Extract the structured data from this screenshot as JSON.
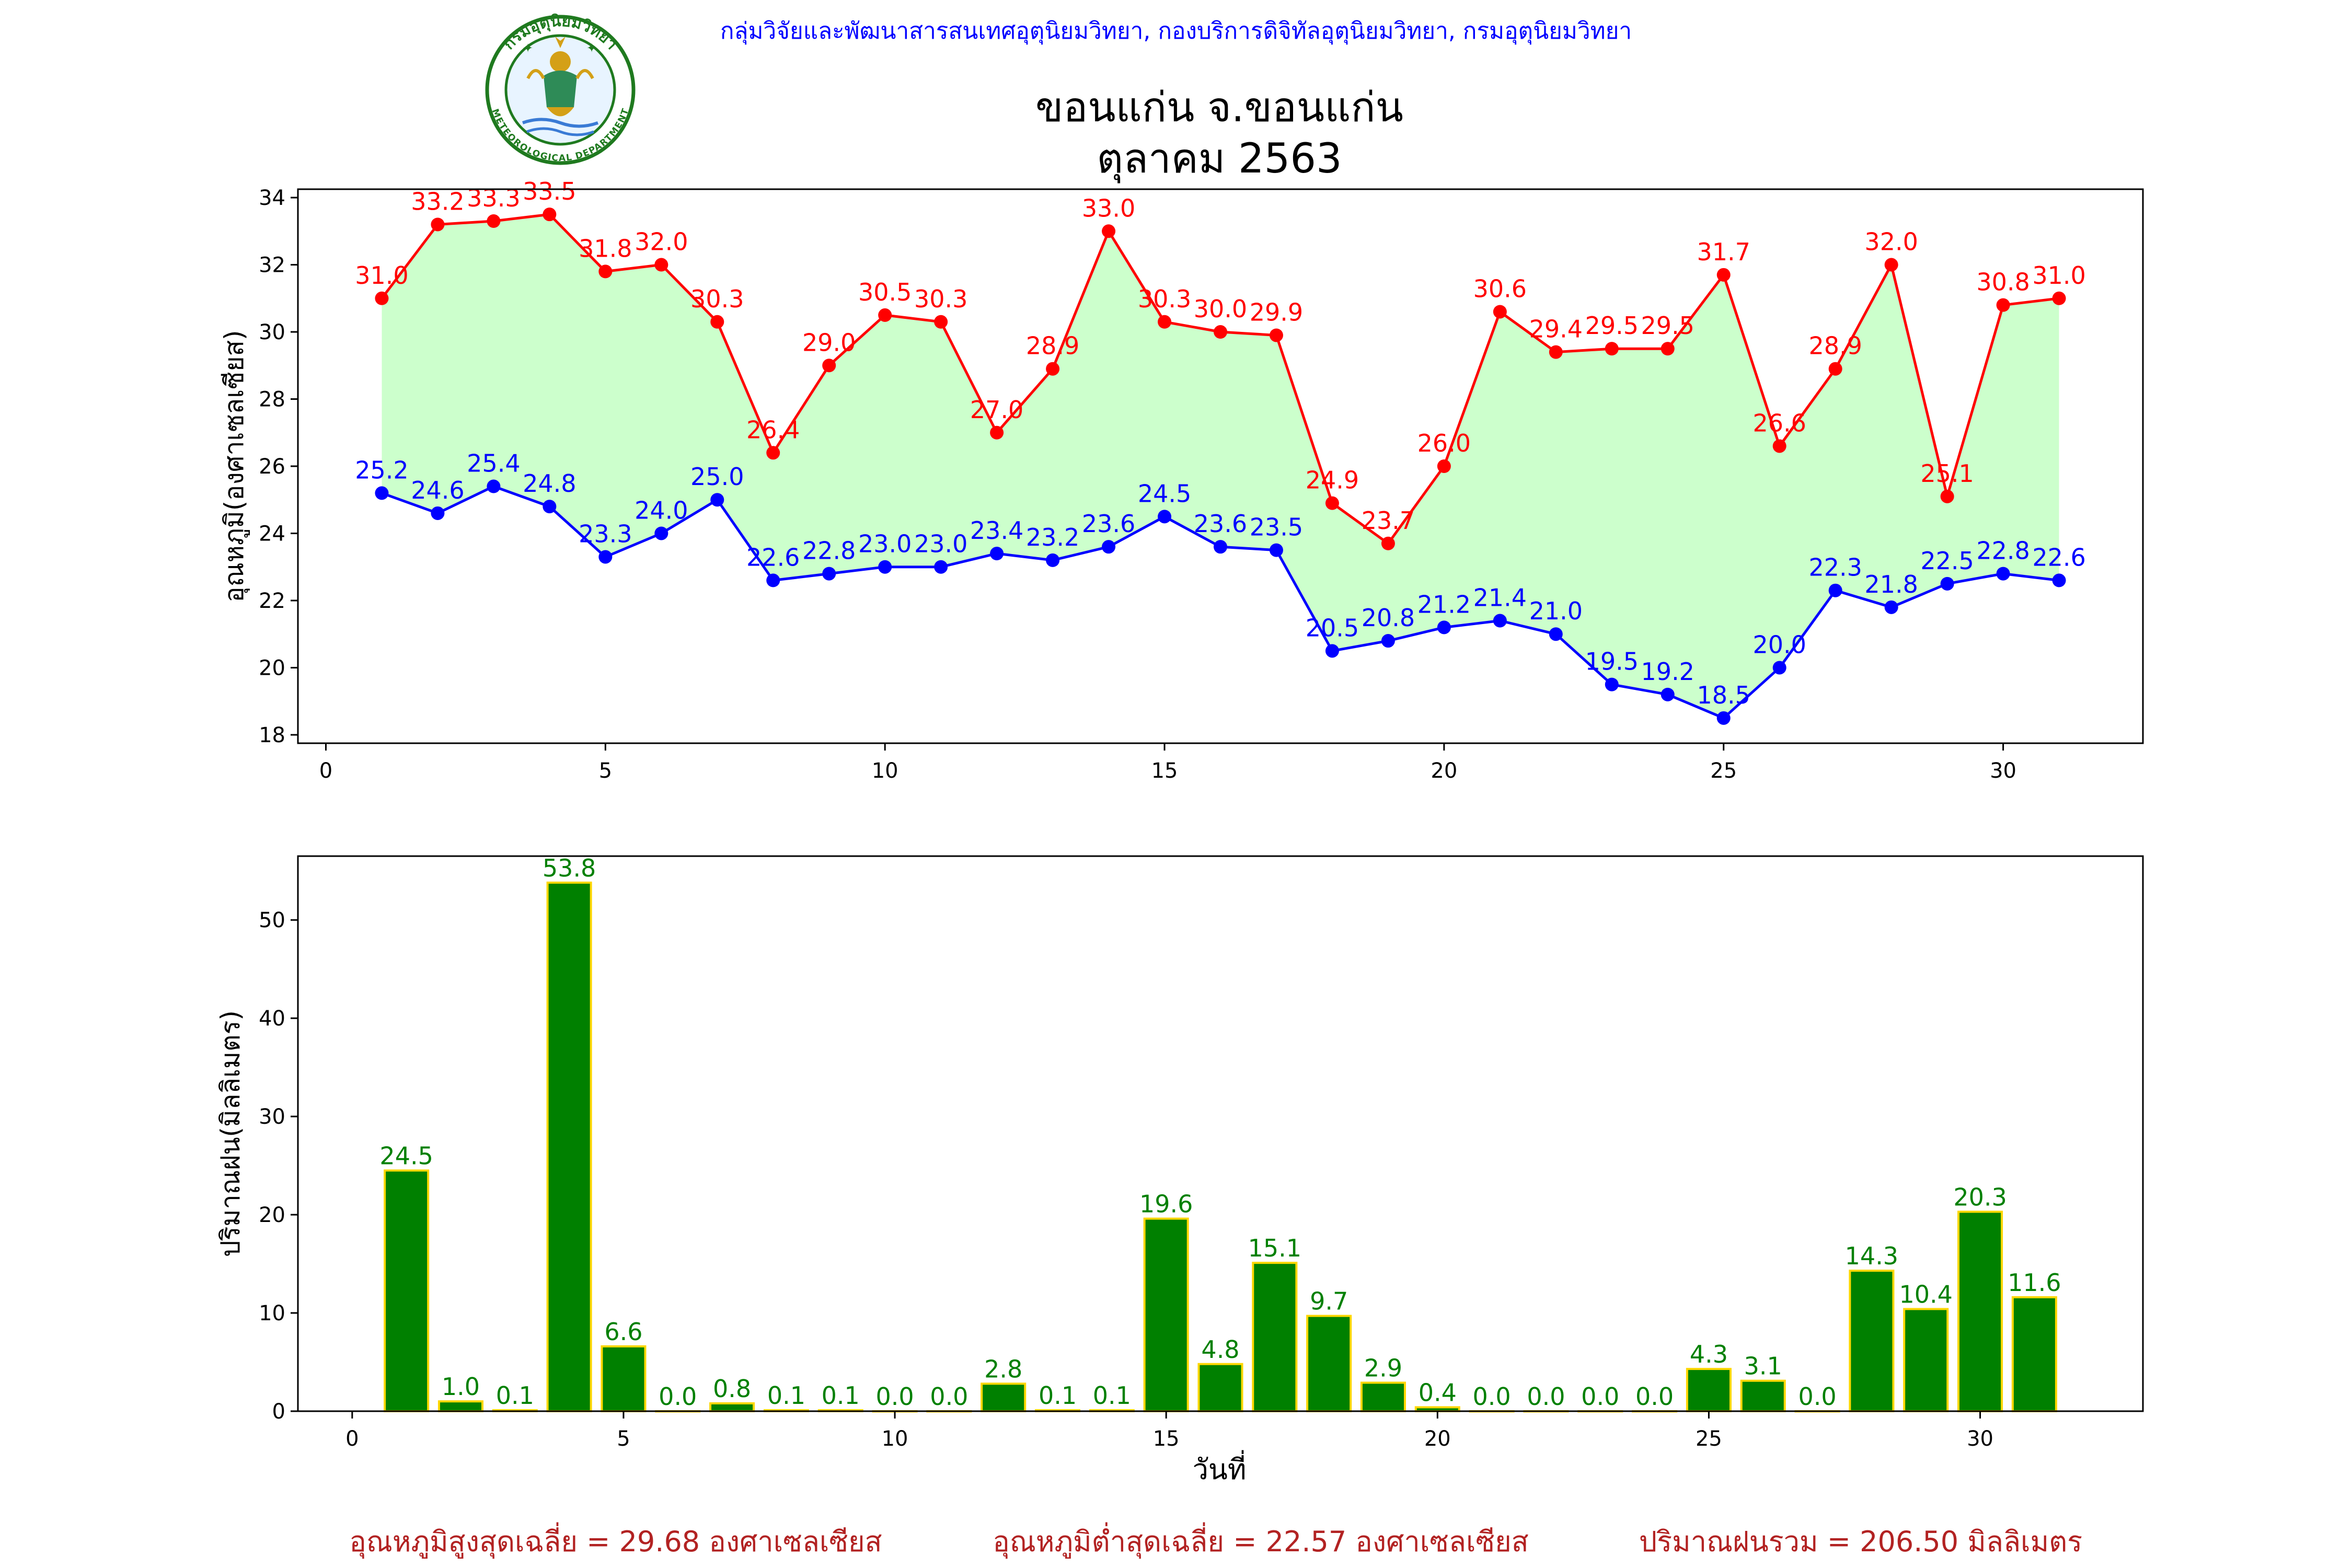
{
  "header": {
    "agency_line": "กลุ่มวิจัยและพัฒนาสารสนเทศอุตุนิยมวิทยา, กองบริการดิจิทัลอุตุนิยมวิทยา, กรมอุตุนิยมวิทยา",
    "title_line1": "ขอนแก่น จ.ขอนแก่น",
    "title_line2": "ตุลาคม 2563",
    "logo": {
      "top_text": "กรมอุตุนิยมวิทยา",
      "bottom_text": "METEOROLOGICAL DEPARTMENT"
    }
  },
  "colors": {
    "max_line": "#ff0000",
    "min_line": "#0000ff",
    "fill": "#ccffcc",
    "bar_fill": "#008000",
    "bar_edge": "#ffd700",
    "bar_label": "#008000",
    "agency_text": "#0000ff",
    "summary_text": "#b22222"
  },
  "chart_data": [
    {
      "type": "line",
      "x": [
        1,
        2,
        3,
        4,
        5,
        6,
        7,
        8,
        9,
        10,
        11,
        12,
        13,
        14,
        15,
        16,
        17,
        18,
        19,
        20,
        21,
        22,
        23,
        24,
        25,
        26,
        27,
        28,
        29,
        30,
        31
      ],
      "series": [
        {
          "values": [
            31.0,
            33.2,
            33.3,
            33.5,
            31.8,
            32.0,
            30.3,
            26.4,
            29.0,
            30.5,
            30.3,
            27.0,
            28.9,
            33.0,
            30.3,
            30.0,
            29.9,
            24.9,
            23.7,
            26.0,
            30.6,
            29.4,
            29.5,
            29.5,
            31.7,
            26.6,
            28.9,
            32.0,
            25.1,
            30.8,
            31.0
          ]
        },
        {
          "values": [
            25.2,
            24.6,
            25.4,
            24.8,
            23.3,
            24.0,
            25.0,
            22.6,
            22.8,
            23.0,
            23.0,
            23.4,
            23.2,
            23.6,
            24.5,
            23.6,
            23.5,
            20.5,
            20.8,
            21.2,
            21.4,
            21.0,
            19.5,
            19.2,
            18.5,
            20.0,
            22.3,
            21.8,
            22.5,
            22.8,
            22.6
          ]
        }
      ],
      "ylabel": "อุณหภูมิ(องศาเซลเซียส)",
      "xlim": [
        -0.5,
        32.5
      ],
      "ylim": [
        17.75,
        34.25
      ],
      "xticks": [
        0,
        5,
        10,
        15,
        20,
        25,
        30
      ],
      "yticks": [
        18,
        20,
        22,
        24,
        26,
        28,
        30,
        32,
        34
      ],
      "grid": false,
      "data_labels": true
    },
    {
      "type": "bar",
      "categories": [
        1,
        2,
        3,
        4,
        5,
        6,
        7,
        8,
        9,
        10,
        11,
        12,
        13,
        14,
        15,
        16,
        17,
        18,
        19,
        20,
        21,
        22,
        23,
        24,
        25,
        26,
        27,
        28,
        29,
        30,
        31
      ],
      "values": [
        24.5,
        1.0,
        0.1,
        53.8,
        6.6,
        0.0,
        0.8,
        0.1,
        0.1,
        0.0,
        0.0,
        2.8,
        0.1,
        0.1,
        19.6,
        4.8,
        15.1,
        9.7,
        2.9,
        0.4,
        0.0,
        0.0,
        0.0,
        0.0,
        4.3,
        3.1,
        0.0,
        14.3,
        10.4,
        20.3,
        11.6
      ],
      "xlabel": "วันที่",
      "ylabel": "ปริมาณฝน(มิลลิเมตร)",
      "xlim": [
        -1,
        33
      ],
      "ylim": [
        0,
        56.5
      ],
      "xticks": [
        0,
        5,
        10,
        15,
        20,
        25,
        30
      ],
      "yticks": [
        0,
        10,
        20,
        30,
        40,
        50
      ],
      "grid": false,
      "data_labels": true
    }
  ],
  "summary": {
    "avg_max": "อุณหภูมิสูงสุดเฉลี่ย = 29.68 องศาเซลเซียส",
    "avg_min": "อุณหภูมิต่ำสุดเฉลี่ย = 22.57 องศาเซลเซียส",
    "total_rain": "ปริมาณฝนรวม = 206.50 มิลลิเมตร"
  }
}
